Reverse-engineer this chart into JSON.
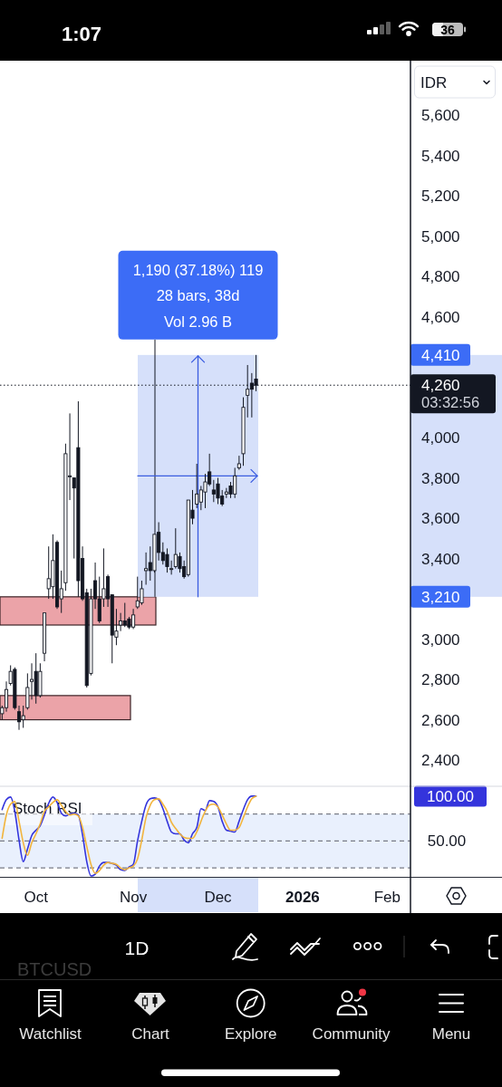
{
  "chart_data": [
    {
      "type": "candlestick",
      "categories": [
        null,
        null,
        null,
        null,
        null,
        null,
        null,
        null,
        "Oct",
        null,
        null,
        null,
        null,
        null,
        null,
        null,
        null,
        null,
        null,
        null,
        null,
        null,
        null,
        null,
        null,
        null,
        null,
        null,
        null,
        null,
        null,
        "Nov",
        null,
        null,
        null,
        null,
        null,
        null,
        null,
        null,
        null,
        null,
        null,
        null,
        null,
        null,
        null,
        null,
        null,
        null,
        null,
        "Dec",
        null,
        null,
        null,
        null,
        null,
        null,
        null,
        null,
        null,
        null,
        null,
        null,
        null,
        null,
        null,
        null,
        null,
        null,
        null,
        "2026",
        null,
        null,
        null,
        null,
        null,
        null,
        null,
        null,
        null,
        null,
        null,
        null,
        null,
        null,
        null,
        null,
        null,
        null,
        null,
        "Feb",
        null,
        null,
        null,
        null,
        null
      ],
      "ohlc": [
        [
          2630,
          2670,
          2600,
          2660
        ],
        [
          2660,
          2790,
          2640,
          2750
        ],
        [
          2780,
          2870,
          2770,
          2840
        ],
        [
          2850,
          2860,
          2650,
          2660
        ],
        [
          2640,
          2670,
          2550,
          2590
        ],
        [
          2600,
          2670,
          2560,
          2620
        ],
        [
          2660,
          2830,
          2650,
          2760
        ],
        [
          2790,
          2880,
          2700,
          2800
        ],
        [
          2840,
          2930,
          2680,
          2720
        ],
        [
          2720,
          2880,
          2710,
          2840
        ],
        [
          2930,
          3130,
          2890,
          3130
        ],
        [
          3250,
          3460,
          3200,
          3300
        ],
        [
          3260,
          3520,
          3200,
          3390
        ],
        [
          3480,
          3490,
          3150,
          3160
        ],
        [
          3200,
          3340,
          3130,
          3250
        ],
        [
          3280,
          3970,
          3240,
          3920
        ],
        [
          3810,
          4120,
          3690,
          3810
        ],
        [
          3800,
          3800,
          3400,
          3750
        ],
        [
          3950,
          4180,
          3210,
          3290
        ],
        [
          3400,
          3460,
          3190,
          3200
        ],
        [
          3230,
          3250,
          2760,
          2770
        ],
        [
          2830,
          3250,
          2820,
          3200
        ],
        [
          3290,
          3380,
          3150,
          3200
        ],
        [
          3200,
          3310,
          3080,
          3090
        ],
        [
          3200,
          3450,
          3160,
          3250
        ],
        [
          3310,
          3320,
          3160,
          3200
        ],
        [
          3220,
          3220,
          2880,
          3020
        ],
        [
          3010,
          3150,
          2970,
          3040
        ],
        [
          3070,
          3130,
          3040,
          3090
        ],
        [
          3090,
          3180,
          3060,
          3070
        ],
        [
          3100,
          3110,
          3050,
          3060
        ],
        [
          3060,
          3150,
          3050,
          3120
        ],
        [
          3160,
          3310,
          3150,
          3190
        ],
        [
          3180,
          3290,
          3170,
          3250
        ],
        [
          3340,
          3430,
          3270,
          3350
        ],
        [
          3380,
          3460,
          3290,
          3340
        ],
        [
          3340,
          3520,
          3330,
          3520
        ],
        [
          3530,
          3580,
          3390,
          3430
        ],
        [
          3430,
          3480,
          3370,
          3390
        ],
        [
          3420,
          3450,
          3330,
          3360
        ],
        [
          3350,
          3390,
          3320,
          3350
        ],
        [
          3360,
          3550,
          3350,
          3420
        ],
        [
          3410,
          3430,
          3330,
          3350
        ],
        [
          3360,
          3390,
          3300,
          3310
        ],
        [
          3320,
          3690,
          3310,
          3690
        ],
        [
          3640,
          3740,
          3570,
          3600
        ],
        [
          3670,
          3870,
          3650,
          3720
        ],
        [
          3680,
          3760,
          3640,
          3740
        ],
        [
          3730,
          3820,
          3650,
          3780
        ],
        [
          3830,
          3920,
          3760,
          3770
        ],
        [
          3740,
          3790,
          3680,
          3720
        ],
        [
          3770,
          3800,
          3670,
          3700
        ],
        [
          3710,
          3740,
          3660,
          3670
        ],
        [
          3720,
          3750,
          3700,
          3730
        ],
        [
          3760,
          3780,
          3700,
          3720
        ],
        [
          3720,
          3850,
          3700,
          3810
        ],
        [
          3850,
          3910,
          3840,
          3870
        ],
        [
          3920,
          4200,
          3860,
          4150
        ],
        [
          4210,
          4360,
          4100,
          4240
        ],
        [
          4270,
          4320,
          4100,
          4240
        ],
        [
          4290,
          4410,
          4230,
          4260
        ],
        null,
        null,
        null,
        null,
        null,
        null,
        null,
        null,
        null,
        null,
        null,
        null,
        null,
        null,
        null,
        null,
        null,
        null,
        null,
        null,
        null,
        null,
        null,
        null,
        null,
        null,
        null,
        null,
        null,
        null,
        null,
        null,
        null,
        null,
        null,
        null
      ],
      "ylim": [
        2270,
        5870
      ],
      "yticks": [
        {
          "value": 5600,
          "label": "5,600"
        },
        {
          "value": 5400,
          "label": "5,400"
        },
        {
          "value": 5200,
          "label": "5,200"
        },
        {
          "value": 5000,
          "label": "5,000"
        },
        {
          "value": 4800,
          "label": "4,800"
        },
        {
          "value": 4600,
          "label": "4,600"
        },
        {
          "value": 4000,
          "label": "4,000"
        },
        {
          "value": 3800,
          "label": "3,800"
        },
        {
          "value": 3600,
          "label": "3,600"
        },
        {
          "value": 3400,
          "label": "3,400"
        },
        {
          "value": 3000,
          "label": "3,000"
        },
        {
          "value": 2800,
          "label": "2,800"
        },
        {
          "value": 2600,
          "label": "2,600"
        },
        {
          "value": 2400,
          "label": "2,400"
        }
      ],
      "bands": [
        {
          "axis": "y",
          "from": 2600,
          "to": 2720,
          "color": "#eba3a8"
        },
        {
          "axis": "y",
          "from": 3070,
          "to": 3210,
          "color": "#eba3a8"
        },
        {
          "axis": "y",
          "from": 3210,
          "to": 4410,
          "color": "#d6e0fa"
        }
      ],
      "ref_lines": [
        {
          "axis": "y",
          "value": 4260,
          "label": "4,260",
          "line_style": "dotted",
          "color": "#131722"
        }
      ],
      "annotations": [
        "1,190 (37.18%) 119",
        "28 bars, 38d",
        "Vol 2.96 B",
        "4,410",
        "3,210",
        "03:32:56",
        "IDR"
      ]
    },
    {
      "type": "line",
      "title": "Stoch RSI",
      "categories": [
        null,
        null,
        null,
        null,
        null,
        null,
        null,
        null,
        null,
        null,
        null,
        null,
        null,
        null,
        null,
        null,
        null,
        null,
        null,
        null,
        null,
        null,
        null,
        null,
        null,
        null,
        null,
        null,
        null,
        null,
        null,
        null,
        null,
        null,
        null,
        null,
        null,
        null,
        null,
        null,
        null,
        null,
        null,
        null,
        null,
        null,
        null,
        null,
        null,
        null,
        null,
        null,
        null,
        null,
        null,
        null,
        null,
        null,
        null,
        null,
        null,
        null,
        null,
        null,
        null,
        null,
        null,
        null,
        null,
        null,
        null,
        null,
        null,
        null,
        null,
        null,
        null,
        null,
        null,
        null,
        null,
        null,
        null,
        null,
        null,
        null,
        null,
        null,
        null,
        null,
        null,
        null,
        null,
        null,
        null,
        null,
        null
      ],
      "tick_labels": "y",
      "series": [
        {
          "color": "#3434dc",
          "values": [
            85,
            96,
            99,
            83,
            51,
            27,
            41,
            56,
            62,
            67,
            79,
            92,
            99,
            93,
            81,
            78,
            80,
            81,
            79,
            57,
            27,
            11,
            13,
            22,
            26,
            26,
            25,
            23,
            18,
            17,
            21,
            24,
            50,
            72,
            90,
            97,
            98,
            96,
            86,
            72,
            60,
            58,
            58,
            51,
            48,
            58,
            65,
            86,
            84,
            95,
            94,
            88,
            72,
            62,
            61,
            60,
            72,
            85,
            96,
            100,
            100,
            null,
            null,
            null,
            null,
            null,
            null,
            null,
            null,
            null,
            null,
            null,
            null,
            null,
            null,
            null,
            null,
            null,
            null,
            null,
            null,
            null,
            null,
            null,
            null,
            null,
            null,
            null,
            null,
            null,
            null,
            null,
            null,
            null,
            null,
            null,
            null
          ]
        },
        {
          "color": "#f2b43c",
          "values": [
            53,
            79,
            91,
            94,
            72,
            48,
            34,
            48,
            58,
            69,
            83,
            88,
            93,
            96,
            90,
            83,
            79,
            80,
            78,
            65,
            44,
            24,
            14,
            17,
            23,
            26,
            25,
            24,
            20,
            18,
            20,
            22,
            30,
            51,
            76,
            90,
            96,
            97,
            91,
            83,
            71,
            64,
            58,
            54,
            53,
            53,
            60,
            72,
            83,
            90,
            91,
            88,
            79,
            69,
            62,
            62,
            65,
            76,
            88,
            97,
            100,
            null,
            null,
            null,
            null,
            null,
            null,
            null,
            null,
            null,
            null,
            null,
            null,
            null,
            null,
            null,
            null,
            null,
            null,
            null,
            null,
            null,
            null,
            null,
            null,
            null,
            null,
            null,
            null,
            null,
            null,
            null,
            null,
            null,
            null,
            null,
            null
          ]
        }
      ],
      "ylim": [
        10,
        111
      ],
      "yticks": [
        {
          "value": 100,
          "label": "100.00"
        },
        {
          "value": 50,
          "label": "50.00"
        }
      ],
      "ref_lines": [
        {
          "axis": "y",
          "value": 80,
          "line_style": "dashed",
          "color": "#787b86"
        },
        {
          "axis": "y",
          "value": 50,
          "line_style": "dashed",
          "color": "#787b86"
        },
        {
          "axis": "y",
          "value": 20,
          "line_style": "dashed",
          "color": "#787b86"
        }
      ],
      "bands": [
        {
          "axis": "y",
          "from": 20,
          "to": 80,
          "color": "#e9f0fd"
        }
      ]
    },
    {
      "type": "other",
      "annotations": [
        "1:07",
        "36",
        "1D",
        "BTCUSD",
        "Watchlist",
        "Chart",
        "Explore",
        "Community",
        "Menu"
      ]
    }
  ]
}
